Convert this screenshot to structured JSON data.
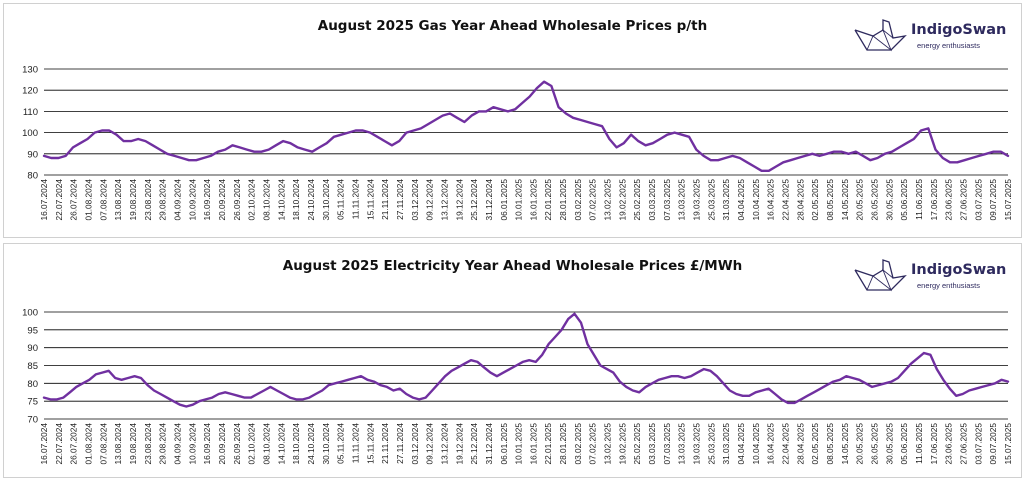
{
  "brand": {
    "name": "IndigoSwan",
    "tagline": "energy enthusiasts"
  },
  "colors": {
    "line": "#7030A0",
    "grid": "#000000",
    "logo": "#2e2a5e"
  },
  "chart_data": [
    {
      "type": "line",
      "title": "August 2025 Gas Year Ahead Wholesale Prices p/th",
      "xlabel": "",
      "ylabel": "",
      "ylim": [
        80,
        130
      ],
      "yticks": [
        80,
        90,
        100,
        110,
        120,
        130
      ],
      "grid": "horizontal",
      "x_tick_labels": [
        "16.07.2024",
        "22.07.2024",
        "26.07.2024",
        "01.08.2024",
        "07.08.2024",
        "13.08.2024",
        "19.08.2024",
        "23.08.2024",
        "29.08.2024",
        "04.09.2024",
        "10.09.2024",
        "16.09.2024",
        "20.09.2024",
        "26.09.2024",
        "02.10.2024",
        "08.10.2024",
        "14.10.2024",
        "18.10.2024",
        "24.10.2024",
        "30.10.2024",
        "05.11.2024",
        "11.11.2024",
        "15.11.2024",
        "21.11.2024",
        "27.11.2024",
        "03.12.2024",
        "09.12.2024",
        "13.12.2024",
        "19.12.2024",
        "25.12.2024",
        "31.12.2024",
        "06.01.2025",
        "10.01.2025",
        "16.01.2025",
        "22.01.2025",
        "28.01.2025",
        "03.02.2025",
        "07.02.2025",
        "13.02.2025",
        "19.02.2025",
        "25.02.2025",
        "03.03.2025",
        "07.03.2025",
        "13.03.2025",
        "19.03.2025",
        "25.03.2025",
        "31.03.2025",
        "04.04.2025",
        "10.04.2025",
        "16.04.2025",
        "22.04.2025",
        "28.04.2025",
        "02.05.2025",
        "08.05.2025",
        "14.05.2025",
        "20.05.2025",
        "26.05.2025",
        "30.05.2025",
        "05.06.2025",
        "11.06.2025",
        "17.06.2025",
        "23.06.2025",
        "27.06.2025",
        "03.07.2025",
        "09.07.2025",
        "15.07.2025"
      ],
      "series": [
        {
          "values": [
            89,
            88,
            88,
            89,
            93,
            95,
            97,
            100,
            101,
            101,
            99,
            96,
            96,
            97,
            96,
            94,
            92,
            90,
            89,
            88,
            87,
            87,
            88,
            89,
            91,
            92,
            94,
            93,
            92,
            91,
            91,
            92,
            94,
            96,
            95,
            93,
            92,
            91,
            93,
            95,
            98,
            99,
            100,
            101,
            101,
            100,
            98,
            96,
            94,
            96,
            100,
            101,
            102,
            104,
            106,
            108,
            109,
            107,
            105,
            108,
            110,
            110,
            112,
            111,
            110,
            111,
            114,
            117,
            121,
            124,
            122,
            112,
            109,
            107,
            106,
            105,
            104,
            103,
            97,
            93,
            95,
            99,
            96,
            94,
            95,
            97,
            99,
            100,
            99,
            98,
            92,
            89,
            87,
            87,
            88,
            89,
            88,
            86,
            84,
            82,
            82,
            84,
            86,
            87,
            88,
            89,
            90,
            89,
            90,
            91,
            91,
            90,
            91,
            89,
            87,
            88,
            90,
            91,
            93,
            95,
            97,
            101,
            102,
            92,
            88,
            86,
            86,
            87,
            88,
            89,
            90,
            91,
            91,
            89
          ]
        }
      ]
    },
    {
      "type": "line",
      "title": "August 2025 Electricity Year Ahead Wholesale Prices £/MWh",
      "xlabel": "",
      "ylabel": "",
      "ylim": [
        70,
        100
      ],
      "yticks": [
        70,
        75,
        80,
        85,
        90,
        95,
        100
      ],
      "grid": "horizontal",
      "x_tick_labels": [
        "16.07.2024",
        "22.07.2024",
        "26.07.2024",
        "01.08.2024",
        "07.08.2024",
        "13.08.2024",
        "19.08.2024",
        "23.08.2024",
        "29.08.2024",
        "04.09.2024",
        "10.09.2024",
        "16.09.2024",
        "20.09.2024",
        "26.09.2024",
        "02.10.2024",
        "08.10.2024",
        "14.10.2024",
        "18.10.2024",
        "24.10.2024",
        "30.10.2024",
        "05.11.2024",
        "11.11.2024",
        "15.11.2024",
        "21.11.2024",
        "27.11.2024",
        "03.12.2024",
        "09.12.2024",
        "13.12.2024",
        "19.12.2024",
        "25.12.2024",
        "31.12.2024",
        "06.01.2025",
        "10.01.2025",
        "16.01.2025",
        "22.01.2025",
        "28.01.2025",
        "03.02.2025",
        "07.02.2025",
        "13.02.2025",
        "19.02.2025",
        "25.02.2025",
        "03.03.2025",
        "07.03.2025",
        "13.03.2025",
        "19.03.2025",
        "25.03.2025",
        "31.03.2025",
        "04.04.2025",
        "10.04.2025",
        "16.04.2025",
        "22.04.2025",
        "28.04.2025",
        "02.05.2025",
        "08.05.2025",
        "14.05.2025",
        "20.05.2025",
        "26.05.2025",
        "30.05.2025",
        "05.06.2025",
        "11.06.2025",
        "17.06.2025",
        "23.06.2025",
        "27.06.2025",
        "03.07.2025",
        "09.07.2025",
        "15.07.2025"
      ],
      "series": [
        {
          "values": [
            76,
            75.5,
            75.5,
            76,
            77.5,
            79,
            80,
            81,
            82.5,
            83,
            83.5,
            81.5,
            81,
            81.5,
            82,
            81.5,
            79.5,
            78,
            77,
            76,
            75,
            74,
            73.5,
            74,
            75,
            75.5,
            76,
            77,
            77.5,
            77,
            76.5,
            76,
            76,
            77,
            78,
            79,
            78,
            77,
            76,
            75.5,
            75.5,
            76,
            77,
            78,
            79.5,
            80,
            80.5,
            81,
            81.5,
            82,
            81,
            80.5,
            79.5,
            79,
            78,
            78.5,
            77,
            76,
            75.5,
            76,
            78,
            80,
            82,
            83.5,
            84.5,
            85.5,
            86.5,
            86,
            84.5,
            83,
            82,
            83,
            84,
            85,
            86,
            86.5,
            86,
            88,
            91,
            93,
            95,
            98,
            99.5,
            97,
            91,
            88,
            85,
            84,
            83,
            80.5,
            79,
            78,
            77.5,
            79,
            80,
            81,
            81.5,
            82,
            82,
            81.5,
            82,
            83,
            84,
            83.5,
            82,
            80,
            78,
            77,
            76.5,
            76.5,
            77.5,
            78,
            78.5,
            77,
            75.5,
            74.5,
            74.5,
            75.5,
            76.5,
            77.5,
            78.5,
            79.5,
            80.5,
            81,
            82,
            81.5,
            81,
            80,
            79,
            79.5,
            80,
            80.5,
            81.5,
            83.5,
            85.5,
            87,
            88.5,
            88,
            84,
            81,
            78.5,
            76.5,
            77,
            78,
            78.5,
            79,
            79.5,
            80,
            81,
            80.5
          ]
        }
      ]
    }
  ]
}
